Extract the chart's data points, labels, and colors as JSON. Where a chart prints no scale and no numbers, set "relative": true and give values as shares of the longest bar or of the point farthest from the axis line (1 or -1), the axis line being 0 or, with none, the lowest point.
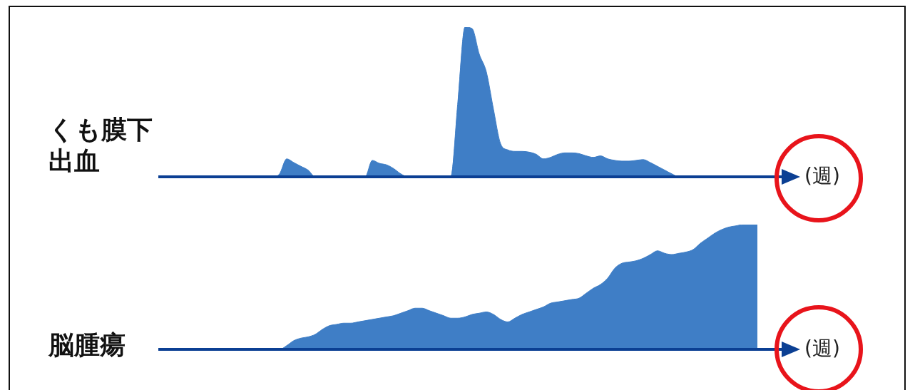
{
  "chart_data": [
    {
      "type": "area",
      "relative": true,
      "ylabel": "くも膜下出血",
      "xlabel": "(週)",
      "color": "#3f7ec6",
      "categories": [
        null,
        null,
        null,
        null,
        null,
        null,
        null,
        null,
        null,
        null,
        null,
        null,
        null,
        null,
        null,
        null,
        null,
        null,
        null,
        null,
        null,
        null,
        null,
        null,
        null,
        null,
        null,
        null,
        null,
        null,
        null,
        null,
        null,
        null,
        null,
        null,
        null,
        null,
        null,
        null,
        null,
        null,
        null,
        null,
        null,
        null,
        null,
        null,
        null,
        null,
        null,
        null,
        null,
        null,
        null,
        null,
        null,
        null,
        null,
        null,
        null,
        null,
        null,
        null,
        null,
        null,
        null,
        null,
        null,
        null,
        null,
        null,
        null,
        null,
        null,
        null,
        null,
        null,
        null,
        null,
        null,
        null,
        null,
        null,
        null,
        null,
        null
      ],
      "values": [
        0,
        0,
        0,
        0,
        0,
        0,
        0,
        0,
        0,
        0,
        0,
        0,
        0,
        0,
        0,
        0,
        0,
        0.02,
        0.12,
        0.095,
        0.07,
        0.045,
        0,
        0,
        0,
        0,
        0,
        0,
        0,
        0,
        0.11,
        0.09,
        0.08,
        0.055,
        0.02,
        0,
        0,
        0,
        0,
        0,
        0,
        0,
        0.5,
        1.0,
        0.99,
        0.82,
        0.7,
        0.45,
        0.22,
        0.18,
        0.17,
        0.17,
        0.165,
        0.15,
        0.12,
        0.13,
        0.15,
        0.16,
        0.16,
        0.155,
        0.14,
        0.13,
        0.14,
        0.12,
        0.11,
        0.105,
        0.105,
        0.11,
        0.115,
        0.095,
        0.07,
        0.045,
        0.02,
        0,
        0,
        0,
        0,
        0,
        0,
        0,
        0,
        0,
        0,
        0,
        0,
        0,
        0
      ]
    },
    {
      "type": "area",
      "relative": true,
      "ylabel": "脳腫瘍",
      "xlabel": "(週)",
      "color": "#3f7ec6",
      "categories": [
        null,
        null,
        null,
        null,
        null,
        null,
        null,
        null,
        null,
        null,
        null,
        null,
        null,
        null,
        null,
        null,
        null,
        null,
        null,
        null,
        null,
        null,
        null,
        null,
        null,
        null,
        null,
        null,
        null,
        null,
        null,
        null,
        null,
        null,
        null,
        null,
        null,
        null,
        null,
        null,
        null,
        null,
        null,
        null,
        null,
        null,
        null,
        null,
        null,
        null,
        null,
        null,
        null,
        null,
        null,
        null,
        null,
        null,
        null,
        null,
        null,
        null,
        null,
        null,
        null,
        null,
        null,
        null,
        null,
        null,
        null,
        null,
        null,
        null,
        null,
        null,
        null,
        null,
        null,
        null,
        null,
        null,
        null,
        null,
        null,
        null,
        null
      ],
      "values": [
        0,
        0,
        0,
        0,
        0,
        0,
        0,
        0,
        0,
        0,
        0,
        0,
        0,
        0,
        0,
        0,
        0,
        0,
        0.03,
        0.07,
        0.09,
        0.1,
        0.12,
        0.16,
        0.19,
        0.2,
        0.21,
        0.21,
        0.22,
        0.23,
        0.24,
        0.25,
        0.26,
        0.27,
        0.29,
        0.31,
        0.33,
        0.33,
        0.31,
        0.29,
        0.27,
        0.25,
        0.25,
        0.26,
        0.28,
        0.29,
        0.3,
        0.28,
        0.24,
        0.22,
        0.25,
        0.28,
        0.3,
        0.32,
        0.34,
        0.37,
        0.38,
        0.39,
        0.4,
        0.41,
        0.45,
        0.49,
        0.52,
        0.57,
        0.65,
        0.69,
        0.7,
        0.71,
        0.73,
        0.76,
        0.79,
        0.77,
        0.76,
        0.77,
        0.78,
        0.8,
        0.85,
        0.89,
        0.93,
        0.96,
        0.98,
        0.99,
        1.0,
        1.0,
        1.0,
        null,
        null
      ]
    }
  ]
}
